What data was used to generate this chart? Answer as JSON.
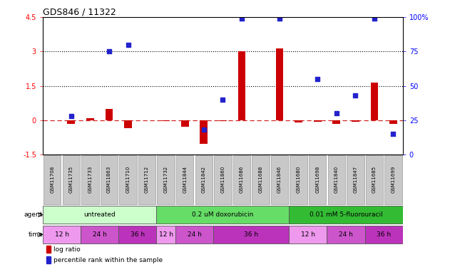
{
  "title": "GDS846 / 11322",
  "samples": [
    "GSM11708",
    "GSM11735",
    "GSM11733",
    "GSM11863",
    "GSM11710",
    "GSM11712",
    "GSM11732",
    "GSM11844",
    "GSM11842",
    "GSM11860",
    "GSM11686",
    "GSM11688",
    "GSM11846",
    "GSM11680",
    "GSM11698",
    "GSM11840",
    "GSM11847",
    "GSM11685",
    "GSM11699"
  ],
  "log_ratio": [
    0.0,
    -0.15,
    0.07,
    0.5,
    -0.35,
    0.0,
    -0.05,
    -0.3,
    -1.05,
    -0.05,
    3.0,
    0.0,
    3.15,
    -0.1,
    -0.07,
    -0.15,
    -0.07,
    1.65,
    -0.15
  ],
  "pct_rank_values": [
    null,
    0.28,
    null,
    0.75,
    0.8,
    null,
    null,
    null,
    0.18,
    0.4,
    0.99,
    null,
    0.99,
    null,
    0.55,
    0.3,
    0.43,
    0.99,
    0.15
  ],
  "ylim": [
    -1.5,
    4.5
  ],
  "yticks_left": [
    -1.5,
    0.0,
    1.5,
    3.0,
    4.5
  ],
  "yticks_right": [
    0,
    25,
    50,
    75,
    100
  ],
  "hlines": [
    1.5,
    3.0
  ],
  "bar_color": "#cc0000",
  "dot_color": "#2222cc",
  "zero_line_color": "#cc0000",
  "hline_color": "#000000",
  "agent_groups": [
    {
      "label": "untreated",
      "start": 0,
      "end": 5,
      "color": "#ccffcc"
    },
    {
      "label": "0.2 uM doxorubicin",
      "start": 6,
      "end": 12,
      "color": "#66dd66"
    },
    {
      "label": "0.01 mM 5-fluorouracil",
      "start": 13,
      "end": 18,
      "color": "#33bb33"
    }
  ],
  "time_groups": [
    {
      "label": "12 h",
      "start": 0,
      "end": 1,
      "color": "#ee99ee"
    },
    {
      "label": "24 h",
      "start": 2,
      "end": 3,
      "color": "#cc55cc"
    },
    {
      "label": "36 h",
      "start": 4,
      "end": 5,
      "color": "#bb33bb"
    },
    {
      "label": "12 h",
      "start": 6,
      "end": 6,
      "color": "#ee99ee"
    },
    {
      "label": "24 h",
      "start": 7,
      "end": 8,
      "color": "#cc55cc"
    },
    {
      "label": "36 h",
      "start": 9,
      "end": 12,
      "color": "#bb33bb"
    },
    {
      "label": "12 h",
      "start": 13,
      "end": 14,
      "color": "#ee99ee"
    },
    {
      "label": "24 h",
      "start": 15,
      "end": 16,
      "color": "#cc55cc"
    },
    {
      "label": "36 h",
      "start": 17,
      "end": 18,
      "color": "#bb33bb"
    }
  ],
  "legend_bar_label": "log ratio",
  "legend_dot_label": "percentile rank within the sample",
  "bg_color": "#ffffff",
  "sample_label_bg": "#c8c8c8"
}
